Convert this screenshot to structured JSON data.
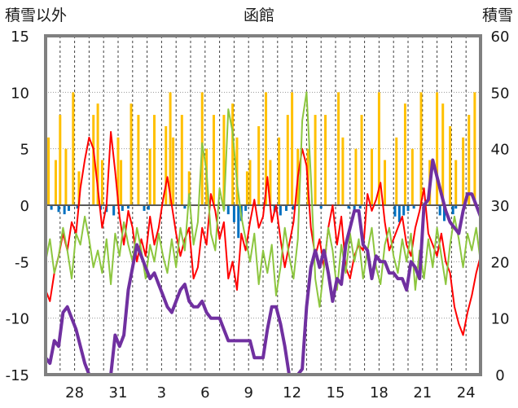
{
  "chart_data": {
    "type": "line",
    "title": "函館",
    "y_left_label": "積雪以外",
    "y_right_label": "積雪",
    "ylim_left": [
      -15,
      15
    ],
    "ylim_right": [
      0,
      60
    ],
    "left_ticks": [
      "15",
      "10",
      "5",
      "0",
      "-5",
      "-10",
      "-15"
    ],
    "right_ticks": [
      "60",
      "50",
      "40",
      "30",
      "20",
      "10",
      "0"
    ],
    "x_ticks": [
      "28",
      "31",
      "3",
      "6",
      "9",
      "12",
      "15",
      "18",
      "21",
      "24"
    ],
    "day_range": [
      0,
      30
    ],
    "x_tick_days": [
      2,
      5,
      8,
      11,
      14,
      17,
      20,
      23,
      26,
      29
    ],
    "grid": "vertical dashed per day; horizontal dotted at 10, 5, -5, -10; solid at 0",
    "colors": {
      "temperature": "#ff0000",
      "wind": "#8dc63f",
      "snow_depth": "#7030a0",
      "snowfall": "#ffc000",
      "precip": "#0070c0",
      "frame": "#808080"
    },
    "snowfall_bars": [
      [
        0.2,
        6
      ],
      [
        0.7,
        4
      ],
      [
        1.0,
        8
      ],
      [
        1.4,
        5
      ],
      [
        1.9,
        10
      ],
      [
        2.3,
        3
      ],
      [
        3.3,
        8
      ],
      [
        3.6,
        9
      ],
      [
        3.9,
        4
      ],
      [
        5.0,
        6
      ],
      [
        5.2,
        4
      ],
      [
        5.9,
        9
      ],
      [
        6.4,
        8
      ],
      [
        7.2,
        5
      ],
      [
        7.5,
        8
      ],
      [
        8.3,
        7
      ],
      [
        8.6,
        10
      ],
      [
        8.8,
        6
      ],
      [
        9.4,
        8
      ],
      [
        9.9,
        3
      ],
      [
        10.8,
        10
      ],
      [
        11.1,
        5
      ],
      [
        11.6,
        8
      ],
      [
        12.3,
        8
      ],
      [
        12.9,
        9
      ],
      [
        13.2,
        6
      ],
      [
        13.9,
        3
      ],
      [
        14.1,
        4
      ],
      [
        14.7,
        7
      ],
      [
        15.2,
        10
      ],
      [
        15.5,
        4
      ],
      [
        16.1,
        6
      ],
      [
        16.7,
        8
      ],
      [
        17.0,
        10
      ],
      [
        17.4,
        5
      ],
      [
        18.1,
        5
      ],
      [
        18.6,
        8
      ],
      [
        19.3,
        8
      ],
      [
        20.2,
        10
      ],
      [
        20.5,
        6
      ],
      [
        21.4,
        5
      ],
      [
        21.8,
        8
      ],
      [
        22.5,
        5
      ],
      [
        23.0,
        10
      ],
      [
        23.4,
        4
      ],
      [
        24.2,
        6
      ],
      [
        24.8,
        9
      ],
      [
        25.3,
        5
      ],
      [
        25.9,
        10
      ],
      [
        26.5,
        4
      ],
      [
        27.0,
        10
      ],
      [
        27.4,
        9
      ],
      [
        27.9,
        7
      ],
      [
        28.3,
        4
      ],
      [
        28.8,
        6
      ],
      [
        29.2,
        8
      ],
      [
        29.6,
        10
      ]
    ],
    "precip_bars": [
      [
        0.4,
        -0.4
      ],
      [
        0.9,
        -0.6
      ],
      [
        1.3,
        -0.8
      ],
      [
        1.6,
        -0.5
      ],
      [
        2.2,
        -0.3
      ],
      [
        3.8,
        -0.4
      ],
      [
        4.2,
        -0.6
      ],
      [
        4.7,
        -0.9
      ],
      [
        5.3,
        -0.5
      ],
      [
        5.7,
        -0.3
      ],
      [
        6.8,
        -0.5
      ],
      [
        7.1,
        -0.4
      ],
      [
        9.6,
        -0.3
      ],
      [
        12.3,
        -0.4
      ],
      [
        12.6,
        -0.8
      ],
      [
        13.0,
        -1.5
      ],
      [
        13.3,
        -2.9
      ],
      [
        13.5,
        -1.4
      ],
      [
        13.8,
        -0.5
      ],
      [
        15.8,
        -0.6
      ],
      [
        16.2,
        -0.9
      ],
      [
        16.6,
        -0.5
      ],
      [
        17.1,
        -0.4
      ],
      [
        19.0,
        -0.3
      ],
      [
        20.9,
        -0.3
      ],
      [
        21.3,
        -0.5
      ],
      [
        21.7,
        -0.3
      ],
      [
        24.1,
        -1.0
      ],
      [
        24.4,
        -1.5
      ],
      [
        24.7,
        -0.9
      ],
      [
        25.0,
        -0.5
      ],
      [
        25.4,
        -0.3
      ],
      [
        27.2,
        -0.9
      ],
      [
        27.5,
        -1.4
      ],
      [
        28.1,
        -0.8
      ],
      [
        28.3,
        -0.3
      ]
    ],
    "series": [
      {
        "key": "temperature",
        "x": [
          0.0,
          0.3,
          0.6,
          0.9,
          1.2,
          1.5,
          1.8,
          2.1,
          2.4,
          2.7,
          3.0,
          3.3,
          3.6,
          3.9,
          4.2,
          4.5,
          4.8,
          5.1,
          5.4,
          5.7,
          6.0,
          6.3,
          6.6,
          6.9,
          7.2,
          7.5,
          7.8,
          8.1,
          8.4,
          8.7,
          9.0,
          9.3,
          9.6,
          9.9,
          10.2,
          10.5,
          10.8,
          11.1,
          11.4,
          11.7,
          12.0,
          12.3,
          12.6,
          12.9,
          13.2,
          13.5,
          13.8,
          14.1,
          14.4,
          14.7,
          15.0,
          15.3,
          15.6,
          15.9,
          16.2,
          16.5,
          16.8,
          17.1,
          17.4,
          17.7,
          18.0,
          18.3,
          18.6,
          18.9,
          19.2,
          19.5,
          19.8,
          20.1,
          20.4,
          20.7,
          21.0,
          21.3,
          21.6,
          21.9,
          22.2,
          22.5,
          22.8,
          23.1,
          23.4,
          23.7,
          24.0,
          24.3,
          24.6,
          24.9,
          25.2,
          25.5,
          25.8,
          26.1,
          26.4,
          26.7,
          27.0,
          27.3,
          27.6,
          27.9,
          28.2,
          28.5,
          28.8,
          29.1,
          29.4,
          29.7,
          30.0
        ],
        "y": [
          -7.5,
          -8.5,
          -6.0,
          -4.5,
          -2.5,
          -4.0,
          -1.5,
          -2.5,
          1.5,
          4.0,
          6.0,
          5.0,
          1.5,
          -2.0,
          0.0,
          6.5,
          3.0,
          -1.0,
          -3.5,
          -0.5,
          -2.0,
          -5.0,
          -3.0,
          -4.5,
          -1.0,
          -3.5,
          -2.0,
          0.5,
          2.5,
          0.0,
          -2.5,
          -4.5,
          -3.0,
          -2.0,
          -6.5,
          -5.5,
          -2.0,
          -3.5,
          1.0,
          -0.5,
          -3.0,
          -1.5,
          -6.5,
          -5.0,
          -7.5,
          -2.5,
          -4.0,
          -1.5,
          0.5,
          -2.0,
          -1.0,
          2.5,
          -1.5,
          0.0,
          -3.0,
          -5.5,
          -3.5,
          -1.5,
          2.5,
          5.0,
          3.5,
          -2.0,
          -4.5,
          -3.0,
          -5.5,
          -2.0,
          0.0,
          -3.5,
          -1.0,
          -5.5,
          -6.5,
          -4.5,
          -3.5,
          -4.0,
          1.0,
          -0.5,
          0.5,
          2.0,
          -1.5,
          -4.0,
          -3.0,
          -2.0,
          -1.0,
          -3.5,
          -4.5,
          -2.0,
          -0.5,
          1.5,
          -2.5,
          -3.5,
          -4.5,
          -2.5,
          -5.0,
          -6.0,
          -9.0,
          -10.5,
          -11.5,
          -9.5,
          -8.0,
          -6.0,
          -4.5
        ]
      },
      {
        "key": "wind",
        "x": [
          0.0,
          0.3,
          0.6,
          0.9,
          1.2,
          1.5,
          1.8,
          2.1,
          2.4,
          2.7,
          3.0,
          3.3,
          3.6,
          3.9,
          4.2,
          4.5,
          4.8,
          5.1,
          5.4,
          5.7,
          6.0,
          6.3,
          6.6,
          6.9,
          7.2,
          7.5,
          7.8,
          8.1,
          8.4,
          8.7,
          9.0,
          9.3,
          9.6,
          9.9,
          10.2,
          10.5,
          10.8,
          11.1,
          11.4,
          11.7,
          12.0,
          12.3,
          12.6,
          12.9,
          13.2,
          13.5,
          13.8,
          14.1,
          14.4,
          14.7,
          15.0,
          15.3,
          15.6,
          15.9,
          16.2,
          16.5,
          16.8,
          17.1,
          17.4,
          17.7,
          18.0,
          18.3,
          18.6,
          18.9,
          19.2,
          19.5,
          19.8,
          20.1,
          20.4,
          20.7,
          21.0,
          21.3,
          21.6,
          21.9,
          22.2,
          22.5,
          22.8,
          23.1,
          23.4,
          23.7,
          24.0,
          24.3,
          24.6,
          24.9,
          25.2,
          25.5,
          25.8,
          26.1,
          26.4,
          26.7,
          27.0,
          27.3,
          27.6,
          27.9,
          28.2,
          28.5,
          28.8,
          29.1,
          29.4,
          29.7,
          30.0
        ],
        "y": [
          -5.0,
          -3.0,
          -6.0,
          -4.5,
          -2.0,
          -4.0,
          -6.5,
          -2.5,
          -3.5,
          -1.0,
          -3.0,
          -5.5,
          -4.0,
          -6.0,
          -3.0,
          -7.0,
          -2.5,
          -4.5,
          -1.5,
          -3.5,
          -5.0,
          -2.0,
          -4.0,
          -6.5,
          -3.5,
          -5.0,
          -2.5,
          -4.5,
          -6.0,
          -3.0,
          -5.5,
          -2.0,
          -4.0,
          1.0,
          -3.5,
          -1.5,
          5.5,
          3.0,
          -2.5,
          -4.0,
          1.5,
          -0.5,
          8.5,
          6.5,
          2.0,
          -1.0,
          -3.0,
          -5.0,
          -2.5,
          -7.0,
          -4.0,
          -6.0,
          -3.5,
          -8.0,
          -5.5,
          -2.0,
          -4.5,
          -6.5,
          -3.0,
          7.5,
          10.0,
          2.5,
          -6.5,
          -9.0,
          -5.5,
          -2.0,
          -4.0,
          -7.5,
          -3.5,
          -6.0,
          -2.5,
          -5.0,
          -3.0,
          -6.5,
          -4.0,
          -2.0,
          -5.5,
          -7.0,
          -3.5,
          -2.0,
          -4.5,
          -6.0,
          -3.0,
          -5.0,
          -2.5,
          -7.5,
          -4.0,
          -6.5,
          -3.0,
          -5.5,
          -2.0,
          -4.5,
          -7.0,
          -3.5,
          -1.0,
          -3.0,
          -5.5,
          -2.5,
          -4.0,
          -2.0,
          -5.0
        ]
      },
      {
        "key": "snow_depth",
        "x": [
          0.0,
          0.3,
          0.6,
          0.9,
          1.2,
          1.5,
          1.8,
          2.1,
          2.4,
          2.7,
          3.0,
          3.3,
          3.6,
          3.9,
          4.2,
          4.5,
          4.8,
          5.1,
          5.4,
          5.7,
          6.0,
          6.3,
          6.6,
          6.9,
          7.2,
          7.5,
          7.8,
          8.1,
          8.4,
          8.7,
          9.0,
          9.3,
          9.6,
          9.9,
          10.2,
          10.5,
          10.8,
          11.1,
          11.4,
          11.7,
          12.0,
          12.3,
          12.6,
          12.9,
          13.2,
          13.5,
          13.8,
          14.1,
          14.4,
          14.7,
          15.0,
          15.3,
          15.6,
          15.9,
          16.2,
          16.5,
          16.8,
          17.1,
          17.4,
          17.7,
          18.0,
          18.3,
          18.6,
          18.9,
          19.2,
          19.5,
          19.8,
          20.1,
          20.4,
          20.7,
          21.0,
          21.3,
          21.6,
          21.9,
          22.2,
          22.5,
          22.8,
          23.1,
          23.4,
          23.7,
          24.0,
          24.3,
          24.6,
          24.9,
          25.2,
          25.5,
          25.8,
          26.1,
          26.4,
          26.7,
          27.0,
          27.3,
          27.6,
          27.9,
          28.2,
          28.5,
          28.8,
          29.1,
          29.4,
          29.7,
          30.0
        ],
        "y": [
          3,
          2,
          6,
          5,
          11,
          12,
          10,
          8,
          5,
          2,
          0,
          0,
          0,
          0,
          0,
          0,
          7,
          5,
          7,
          15,
          19,
          23,
          21,
          19,
          17,
          18,
          16,
          14,
          12,
          11,
          13,
          15,
          16,
          13,
          12,
          12,
          13,
          11,
          10,
          10,
          10,
          8,
          6,
          6,
          6,
          6,
          6,
          6,
          3,
          3,
          3,
          8,
          12,
          12,
          9,
          5,
          0,
          0,
          0,
          1,
          12,
          19,
          22,
          19,
          22,
          18,
          13,
          17,
          16,
          23,
          26,
          29,
          29,
          23,
          22,
          17,
          21,
          20,
          20,
          18,
          18,
          17,
          17,
          15,
          20,
          19,
          17,
          30,
          31,
          38,
          35,
          32,
          29,
          27,
          26,
          25,
          29,
          32,
          32,
          30,
          28
        ]
      }
    ]
  }
}
